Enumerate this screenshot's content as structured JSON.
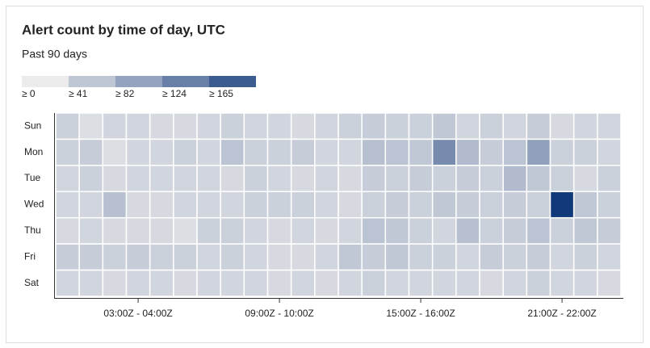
{
  "chart_data": {
    "type": "heatmap",
    "title": "Alert count by time of day, UTC",
    "subtitle": "Past 90 days",
    "legend": [
      {
        "value": 0,
        "label": "≥ 0"
      },
      {
        "value": 41,
        "label": "≥ 41"
      },
      {
        "value": 82,
        "label": "≥ 82"
      },
      {
        "value": 124,
        "label": "≥ 124"
      },
      {
        "value": 165,
        "label": "≥ 165"
      }
    ],
    "zlim": [
      0,
      205
    ],
    "colors": [
      "#ebebeb",
      "#12397a"
    ],
    "x_categories": [
      null,
      null,
      null,
      "03:00Z - 04:00Z",
      null,
      null,
      null,
      null,
      null,
      "09:00Z - 10:00Z",
      null,
      null,
      null,
      null,
      null,
      "15:00Z - 16:00Z",
      null,
      null,
      null,
      null,
      null,
      "21:00Z - 22:00Z",
      null,
      null
    ],
    "y_categories": [
      "Sun",
      "Mon",
      "Tue",
      "Wed",
      "Thu",
      "Fri",
      "Sat"
    ],
    "values": [
      [
        30,
        15,
        25,
        25,
        20,
        20,
        25,
        30,
        25,
        25,
        20,
        25,
        30,
        35,
        30,
        30,
        40,
        25,
        30,
        25,
        35,
        20,
        25,
        25
      ],
      [
        30,
        35,
        15,
        25,
        25,
        30,
        25,
        45,
        30,
        30,
        35,
        25,
        25,
        50,
        45,
        40,
        110,
        55,
        35,
        45,
        85,
        30,
        30,
        25
      ],
      [
        25,
        30,
        20,
        25,
        25,
        25,
        25,
        20,
        30,
        25,
        20,
        25,
        20,
        35,
        30,
        35,
        30,
        35,
        30,
        55,
        40,
        30,
        20,
        30
      ],
      [
        25,
        25,
        50,
        20,
        20,
        25,
        25,
        25,
        30,
        30,
        30,
        25,
        20,
        30,
        35,
        30,
        40,
        35,
        30,
        35,
        30,
        205,
        40,
        30
      ],
      [
        20,
        25,
        20,
        20,
        20,
        15,
        30,
        30,
        25,
        20,
        25,
        20,
        25,
        45,
        40,
        30,
        25,
        50,
        30,
        35,
        45,
        30,
        40,
        35
      ],
      [
        35,
        35,
        30,
        35,
        30,
        30,
        25,
        30,
        25,
        20,
        20,
        25,
        40,
        35,
        40,
        30,
        30,
        25,
        35,
        30,
        35,
        25,
        30,
        25
      ],
      [
        25,
        25,
        20,
        25,
        25,
        20,
        25,
        25,
        25,
        20,
        25,
        20,
        25,
        30,
        25,
        25,
        25,
        25,
        20,
        25,
        30,
        25,
        25,
        20
      ]
    ]
  }
}
